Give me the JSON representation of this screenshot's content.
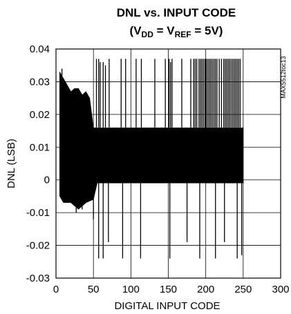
{
  "chart_data": {
    "type": "line",
    "title": "DNL vs. INPUT CODE",
    "subtitle": {
      "open": "(V",
      "sub1": "DD",
      "mid": " = V",
      "sub2": "REF",
      "close": " = 5V)"
    },
    "xlabel": "DIGITAL INPUT CODE",
    "ylabel": "DNL (LSB)",
    "part_number": "MAX5512toc13",
    "xlim": [
      0,
      300
    ],
    "ylim": [
      -0.03,
      0.04
    ],
    "x_ticks": [
      "0",
      "50",
      "100",
      "150",
      "200",
      "250",
      "300"
    ],
    "y_ticks": [
      "-0.03",
      "-0.02",
      "-0.01",
      "0",
      "0.01",
      "0.02",
      "0.03",
      "0.04"
    ],
    "grid": true,
    "series": [
      {
        "x_range": [
          5,
          250
        ],
        "band_high": [
          [
            5,
            0.033
          ],
          [
            10,
            0.031
          ],
          [
            15,
            0.029
          ],
          [
            20,
            0.027
          ],
          [
            25,
            0.028
          ],
          [
            30,
            0.028
          ],
          [
            35,
            0.026
          ],
          [
            40,
            0.027
          ],
          [
            45,
            0.025
          ],
          [
            50,
            0.016
          ],
          [
            250,
            0.016
          ]
        ],
        "band_low": [
          [
            5,
            -0.005
          ],
          [
            10,
            -0.007
          ],
          [
            20,
            -0.007
          ],
          [
            30,
            -0.009
          ],
          [
            40,
            -0.007
          ],
          [
            50,
            -0.006
          ],
          [
            55,
            -0.001
          ],
          [
            250,
            -0.001
          ]
        ],
        "up_spikes": [
          [
            8,
            0.034
          ],
          [
            54,
            0.037
          ],
          [
            57,
            0.037
          ],
          [
            59,
            0.036
          ],
          [
            63,
            0.036
          ],
          [
            66,
            0.035
          ],
          [
            71,
            0.037
          ],
          [
            87,
            0.037
          ],
          [
            93,
            0.037
          ],
          [
            107,
            0.037
          ],
          [
            114,
            0.037
          ],
          [
            132,
            0.037
          ],
          [
            146,
            0.037
          ],
          [
            151,
            0.037
          ],
          [
            153,
            0.036
          ],
          [
            155,
            0.037
          ],
          [
            168,
            0.037
          ],
          [
            180,
            0.037
          ],
          [
            184,
            0.037
          ],
          [
            186,
            0.037
          ],
          [
            188,
            0.037
          ],
          [
            191,
            0.037
          ],
          [
            193,
            0.037
          ],
          [
            195,
            0.037
          ],
          [
            197,
            0.037
          ],
          [
            199,
            0.037
          ],
          [
            201,
            0.037
          ],
          [
            203,
            0.037
          ],
          [
            205,
            0.037
          ],
          [
            207,
            0.037
          ],
          [
            209,
            0.037
          ],
          [
            211,
            0.037
          ],
          [
            213,
            0.037
          ],
          [
            215,
            0.037
          ],
          [
            218,
            0.037
          ],
          [
            221,
            0.037
          ],
          [
            224,
            0.037
          ],
          [
            226,
            0.037
          ],
          [
            228,
            0.037
          ],
          [
            230,
            0.037
          ],
          [
            232,
            0.037
          ],
          [
            234,
            0.037
          ],
          [
            236,
            0.037
          ],
          [
            238,
            0.037
          ],
          [
            240,
            0.037
          ],
          [
            242,
            0.037
          ],
          [
            244,
            0.037
          ],
          [
            246,
            0.037
          ]
        ],
        "down_spikes": [
          [
            27,
            -0.01
          ],
          [
            35,
            -0.009
          ],
          [
            50,
            -0.012
          ],
          [
            57,
            -0.024
          ],
          [
            63,
            -0.024
          ],
          [
            70,
            -0.019
          ],
          [
            89,
            -0.024
          ],
          [
            113,
            -0.024
          ],
          [
            152,
            -0.024
          ],
          [
            175,
            -0.019
          ],
          [
            192,
            -0.024
          ],
          [
            213,
            -0.024
          ],
          [
            225,
            -0.019
          ],
          [
            242,
            -0.024
          ],
          [
            248,
            -0.023
          ]
        ]
      }
    ]
  }
}
